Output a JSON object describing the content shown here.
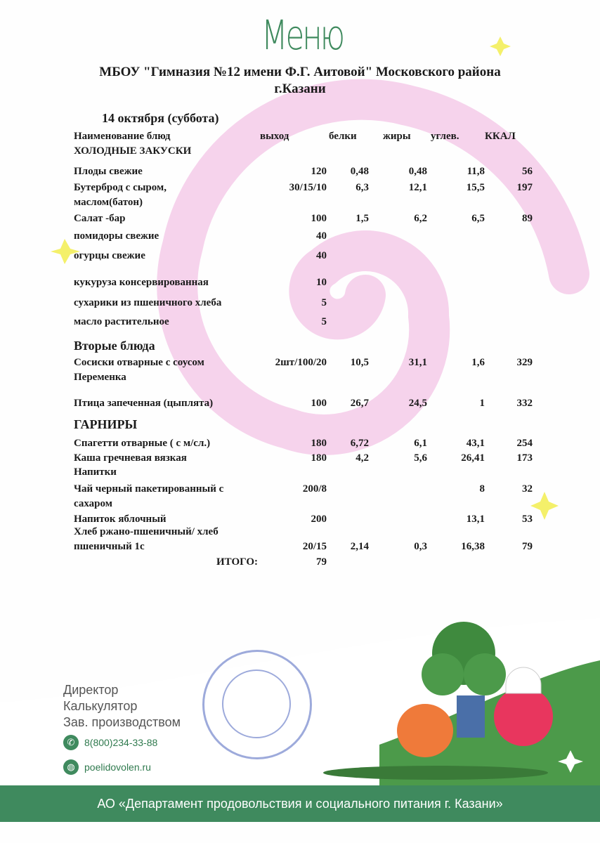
{
  "logo_text": "Меню",
  "school": {
    "line1": "МБОУ \"Гимназия №12 имени Ф.Г. Аитовой\" Московского района",
    "line2": "г.Казани"
  },
  "date": "14 октября (суббота)",
  "headers": {
    "name": "Наименование блюд",
    "out": "выход",
    "protein": "белки",
    "fat": "жиры",
    "carbs": "углев.",
    "kcal": "ККАЛ"
  },
  "rows": [
    {
      "name": "ХОЛОДНЫЕ ЗАКУСКИ",
      "section": true
    },
    {
      "name": "Плоды свежие",
      "out": "120",
      "protein": "0,48",
      "fat": "0,48",
      "carbs": "11,8",
      "kcal": "56"
    },
    {
      "name": "Бутерброд с сыром,",
      "name2": "маслом(батон)",
      "out": "30/15/10",
      "protein": "6,3",
      "fat": "12,1",
      "carbs": "15,5",
      "kcal": "197"
    },
    {
      "name": "Салат -бар",
      "out": "100",
      "protein": "1,5",
      "fat": "6,2",
      "carbs": "6,5",
      "kcal": "89"
    },
    {
      "name": "помидоры свежие",
      "out": "40"
    },
    {
      "name": "огурцы свежие",
      "out": "40"
    },
    {
      "name": "кукуруза  консервированная",
      "out": "10"
    },
    {
      "name": "сухарики из пшеничного хлеба",
      "out": "5"
    },
    {
      "name": "масло растительное",
      "out": "5"
    },
    {
      "name": "Вторые блюда",
      "section": true,
      "big": true
    },
    {
      "name": "Сосиски отварные с соусом",
      "name2": "Переменка",
      "out": "2шт/100/20",
      "protein": "10,5",
      "fat": "31,1",
      "carbs": "1,6",
      "kcal": "329"
    },
    {
      "name": "Птица  запеченная (цыплята)",
      "out": "100",
      "protein": "26,7",
      "fat": "24,5",
      "carbs": "1",
      "kcal": "332"
    },
    {
      "name": "ГАРНИРЫ",
      "section": true,
      "big": true
    },
    {
      "name": "Спагетти  отварные ( с м/сл.)",
      "out": "180",
      "protein": "6,72",
      "fat": "6,1",
      "carbs": "43,1",
      "kcal": "254"
    },
    {
      "name": "Каша гречневая вязкая",
      "out": "180",
      "protein": "4,2",
      "fat": "5,6",
      "carbs": "26,41",
      "kcal": "173"
    },
    {
      "name": "Напитки",
      "section": true
    },
    {
      "name": "Чай черный пакетированный с",
      "name2": "сахаром",
      "out": "200/8",
      "carbs": "8",
      "kcal": "32"
    },
    {
      "name": "Напиток яблочный",
      "out": "200",
      "carbs": "13,1",
      "kcal": "53"
    },
    {
      "name": "Хлеб ржано-пшеничный/ хлеб",
      "name2": "пшеничный 1с",
      "out": "20/15",
      "protein": "2,14",
      "fat": "0,3",
      "carbs": "16,38",
      "kcal": "79",
      "values_on_second": true
    }
  ],
  "total": {
    "label": "ИТОГО:",
    "value": "79"
  },
  "signatures": [
    "Директор",
    "Калькулятор",
    "Зав. производством"
  ],
  "contacts": {
    "phone": "8(800)234-33-88",
    "site": "poelidovolen.ru"
  },
  "bottom_banner": "АО «Департамент продовольствия и социального питания г. Казани»",
  "colors": {
    "green": "#3f8a5e",
    "pink": "#f3c6e6",
    "yellow": "#f4f06a",
    "stamp": "#7d8ed0"
  }
}
